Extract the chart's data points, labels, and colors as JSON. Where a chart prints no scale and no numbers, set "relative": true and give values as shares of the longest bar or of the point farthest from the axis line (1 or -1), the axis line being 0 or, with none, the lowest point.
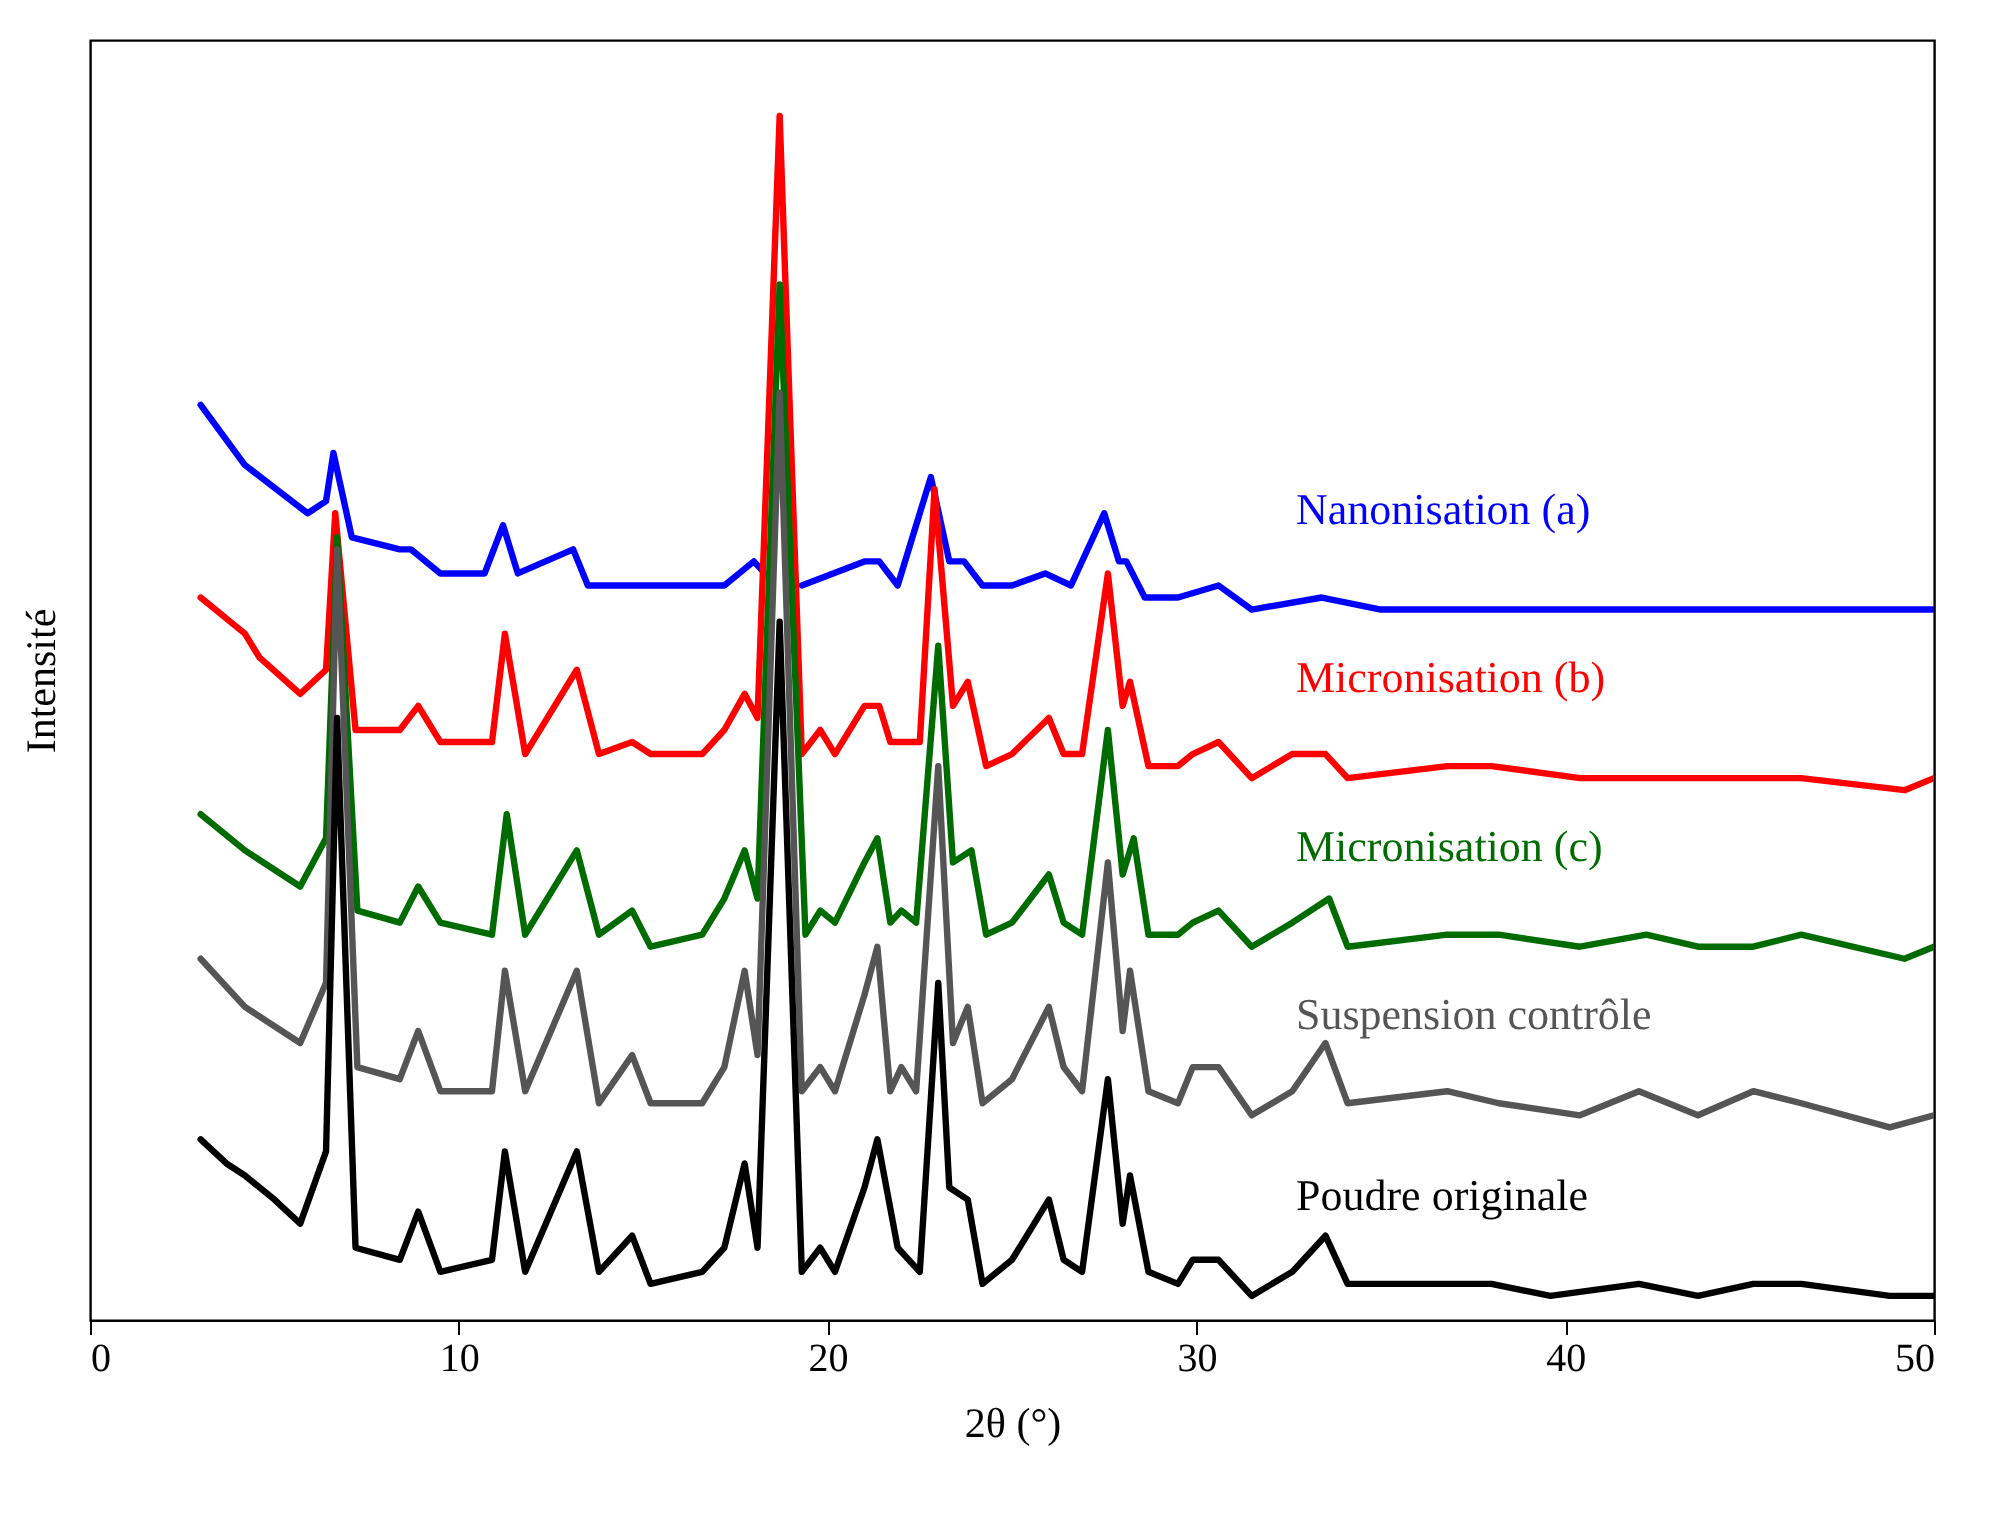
{
  "chart_data": {
    "type": "line",
    "relative": true,
    "xlabel": "2θ (°)",
    "ylabel": "Intensité",
    "xlim": [
      0,
      50
    ],
    "xticks": [
      0,
      10,
      20,
      30,
      40,
      50
    ],
    "line_style": "solid",
    "marker": "none",
    "series": [
      {
        "name": "Nanonisation (a)",
        "color": "#0000ff",
        "x": [
          3.0,
          4.2,
          5.9,
          6.4,
          6.6,
          7.1,
          8.4,
          8.7,
          9.5,
          10.7,
          11.2,
          11.6,
          13.1,
          13.5,
          14.7,
          15.5,
          17.2,
          18.0,
          18.3,
          18.7,
          19.3,
          21.0,
          21.4,
          21.9,
          22.8,
          23.3,
          23.7,
          24.2,
          25.0,
          25.9,
          26.6,
          27.5,
          27.9,
          28.1,
          28.6,
          29.5,
          30.6,
          31.5,
          33.4,
          35,
          40,
          43,
          47,
          50
        ],
        "values": [
          0.76,
          0.71,
          0.67,
          0.68,
          0.72,
          0.65,
          0.64,
          0.64,
          0.62,
          0.62,
          0.66,
          0.62,
          0.64,
          0.61,
          0.61,
          0.61,
          0.61,
          0.63,
          0.62,
          null,
          0.61,
          0.63,
          0.63,
          0.61,
          0.7,
          0.63,
          0.63,
          0.61,
          0.61,
          0.62,
          0.61,
          0.67,
          0.63,
          0.63,
          0.6,
          0.6,
          0.61,
          0.59,
          0.6,
          0.59,
          0.59,
          0.59,
          0.59,
          0.59
        ]
      },
      {
        "name": "Micronisation (b)",
        "color": "#ff0000",
        "x": [
          3.0,
          4.2,
          4.6,
          5.7,
          6.4,
          6.65,
          7.2,
          8.4,
          8.9,
          9.5,
          10.9,
          11.25,
          11.8,
          13.2,
          13.8,
          14.7,
          15.2,
          16.6,
          17.2,
          17.75,
          18.1,
          18.7,
          19.3,
          19.8,
          20.2,
          21.0,
          21.4,
          21.7,
          22.1,
          22.5,
          22.9,
          23.4,
          23.8,
          24.3,
          25.0,
          26.0,
          26.4,
          26.9,
          27.6,
          28.0,
          28.2,
          28.7,
          29.5,
          29.9,
          30.6,
          31.5,
          32.6,
          33.5,
          34.1,
          36.8,
          38.0,
          40.4,
          42.2,
          45.1,
          46.4,
          49.2,
          50
        ],
        "values": [
          0.6,
          0.57,
          0.55,
          0.52,
          0.54,
          0.67,
          0.49,
          0.49,
          0.51,
          0.48,
          0.48,
          0.57,
          0.47,
          0.54,
          0.47,
          0.48,
          0.47,
          0.47,
          0.49,
          0.52,
          0.5,
          1.0,
          0.47,
          0.49,
          0.47,
          0.51,
          0.51,
          0.48,
          0.48,
          0.48,
          0.69,
          0.51,
          0.53,
          0.46,
          0.47,
          0.5,
          0.47,
          0.47,
          0.62,
          0.51,
          0.53,
          0.46,
          0.46,
          0.47,
          0.48,
          0.45,
          0.47,
          0.47,
          0.45,
          0.46,
          0.46,
          0.45,
          0.45,
          0.45,
          0.45,
          0.44,
          0.45
        ]
      },
      {
        "name": "Micronisation (c)",
        "color": "#006b00",
        "x": [
          3.0,
          4.2,
          5.7,
          6.4,
          6.7,
          7.25,
          8.4,
          8.9,
          9.5,
          10.9,
          11.3,
          11.8,
          13.2,
          13.8,
          14.7,
          15.2,
          16.6,
          17.2,
          17.75,
          18.1,
          18.7,
          19.4,
          19.8,
          20.2,
          21.0,
          21.35,
          21.7,
          22.0,
          22.4,
          23.0,
          23.4,
          23.9,
          24.3,
          25.0,
          26.0,
          26.4,
          26.9,
          27.6,
          28.0,
          28.3,
          28.7,
          29.5,
          29.9,
          30.6,
          31.5,
          32.6,
          33.6,
          34.1,
          36.8,
          38.2,
          40.4,
          42.2,
          43.6,
          45.1,
          46.4,
          49.2,
          50
        ],
        "values": [
          0.42,
          0.39,
          0.36,
          0.4,
          0.65,
          0.34,
          0.33,
          0.36,
          0.33,
          0.32,
          0.42,
          0.32,
          0.39,
          0.32,
          0.34,
          0.31,
          0.32,
          0.35,
          0.39,
          0.35,
          0.86,
          0.32,
          0.34,
          0.33,
          0.38,
          0.4,
          0.33,
          0.34,
          0.33,
          0.56,
          0.38,
          0.39,
          0.32,
          0.33,
          0.37,
          0.33,
          0.32,
          0.49,
          0.37,
          0.4,
          0.32,
          0.32,
          0.33,
          0.34,
          0.31,
          0.33,
          0.35,
          0.31,
          0.32,
          0.32,
          0.31,
          0.32,
          0.31,
          0.31,
          0.32,
          0.3,
          0.31
        ]
      },
      {
        "name": "Suspension contrôle",
        "color": "#555555",
        "x": [
          3.0,
          4.2,
          5.7,
          6.4,
          6.7,
          7.25,
          8.4,
          8.9,
          9.5,
          10.9,
          11.25,
          11.8,
          13.2,
          13.8,
          14.7,
          15.2,
          16.6,
          17.2,
          17.75,
          18.1,
          18.7,
          19.3,
          19.8,
          20.2,
          21.0,
          21.35,
          21.7,
          22.0,
          22.4,
          23.0,
          23.4,
          23.8,
          24.2,
          25.0,
          26.0,
          26.4,
          26.9,
          27.6,
          28.0,
          28.2,
          28.7,
          29.5,
          29.9,
          30.6,
          31.5,
          32.6,
          33.5,
          34.1,
          36.8,
          38.2,
          40.4,
          42.0,
          43.6,
          45.1,
          46.4,
          48.8,
          50
        ],
        "values": [
          0.3,
          0.26,
          0.23,
          0.28,
          0.64,
          0.21,
          0.2,
          0.24,
          0.19,
          0.19,
          0.29,
          0.19,
          0.29,
          0.18,
          0.22,
          0.18,
          0.18,
          0.21,
          0.29,
          0.22,
          0.77,
          0.19,
          0.21,
          0.19,
          0.27,
          0.31,
          0.19,
          0.21,
          0.19,
          0.46,
          0.23,
          0.26,
          0.18,
          0.2,
          0.26,
          0.21,
          0.19,
          0.38,
          0.24,
          0.29,
          0.19,
          0.18,
          0.21,
          0.21,
          0.17,
          0.19,
          0.23,
          0.18,
          0.19,
          0.18,
          0.17,
          0.19,
          0.17,
          0.19,
          0.18,
          0.16,
          0.17
        ]
      },
      {
        "name": "Poudre originale",
        "color": "#000000",
        "x": [
          3.0,
          3.7,
          4.2,
          5.0,
          5.7,
          6.4,
          6.7,
          7.2,
          8.4,
          8.9,
          9.5,
          10.9,
          11.25,
          11.8,
          13.2,
          13.8,
          14.7,
          15.2,
          16.6,
          17.2,
          17.75,
          18.1,
          18.7,
          19.3,
          19.8,
          20.2,
          21.0,
          21.35,
          21.9,
          22.5,
          23.0,
          23.3,
          23.8,
          24.2,
          25.0,
          26.0,
          26.4,
          26.9,
          27.6,
          28.0,
          28.2,
          28.7,
          29.5,
          29.9,
          30.6,
          31.5,
          32.6,
          33.5,
          34.1,
          36.4,
          38.0,
          39.6,
          42.0,
          43.6,
          45.1,
          46.4,
          48.8,
          50
        ],
        "values": [
          0.15,
          0.13,
          0.12,
          0.1,
          0.08,
          0.14,
          0.5,
          0.06,
          0.05,
          0.09,
          0.04,
          0.05,
          0.14,
          0.04,
          0.14,
          0.04,
          0.07,
          0.03,
          0.04,
          0.06,
          0.13,
          0.06,
          0.58,
          0.04,
          0.06,
          0.04,
          0.11,
          0.15,
          0.06,
          0.04,
          0.28,
          0.11,
          0.1,
          0.03,
          0.05,
          0.1,
          0.05,
          0.04,
          0.2,
          0.08,
          0.12,
          0.04,
          0.03,
          0.05,
          0.05,
          0.02,
          0.04,
          0.07,
          0.03,
          0.03,
          0.03,
          0.02,
          0.03,
          0.02,
          0.03,
          0.03,
          0.02,
          0.02
        ]
      }
    ]
  }
}
